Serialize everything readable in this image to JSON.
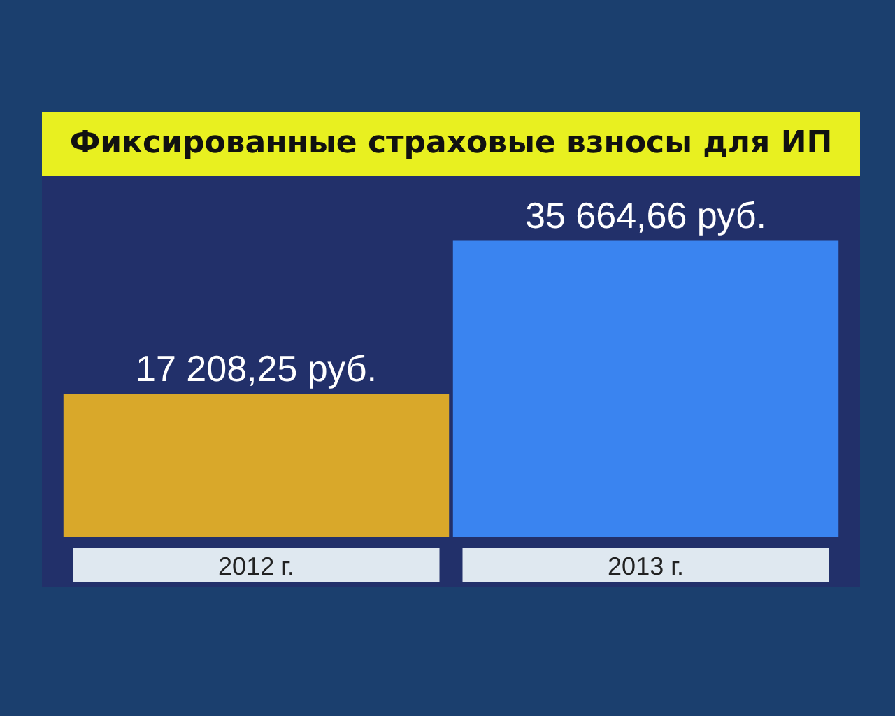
{
  "chart_data": {
    "type": "bar",
    "title": "Фиксированные страховые взносы для ИП",
    "categories": [
      "2012 г.",
      "2013 г."
    ],
    "values": [
      17208.25,
      35664.66
    ],
    "colors": [
      "#d9a82a",
      "#3a84f0"
    ],
    "value_labels": [
      "17 208,25 руб.",
      "35 664,66 руб."
    ]
  }
}
